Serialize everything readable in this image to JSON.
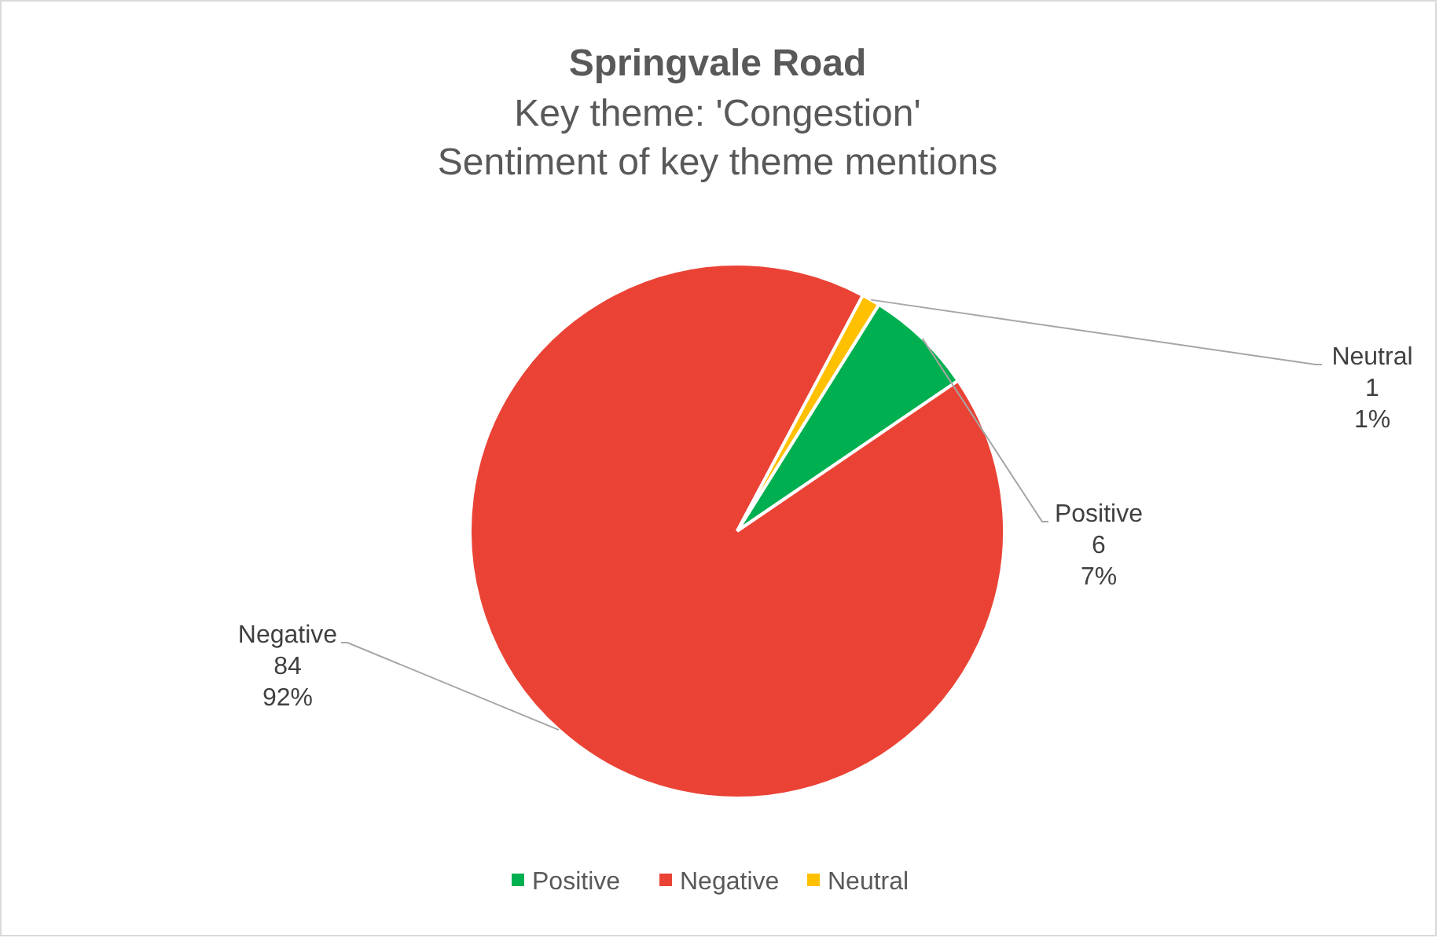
{
  "chart_data": {
    "type": "pie",
    "title": "Springvale Road",
    "subtitle": "Key theme: 'Congestion'\nSentiment of key theme mentions",
    "categories": [
      "Positive",
      "Negative",
      "Neutral"
    ],
    "values": [
      6,
      84,
      1
    ],
    "colors": [
      "#00b050",
      "#ea4335",
      "#ffc000"
    ],
    "value_labels": [
      "6\n7%",
      "84\n92%",
      "1\n1%"
    ],
    "legend": "bottom"
  }
}
